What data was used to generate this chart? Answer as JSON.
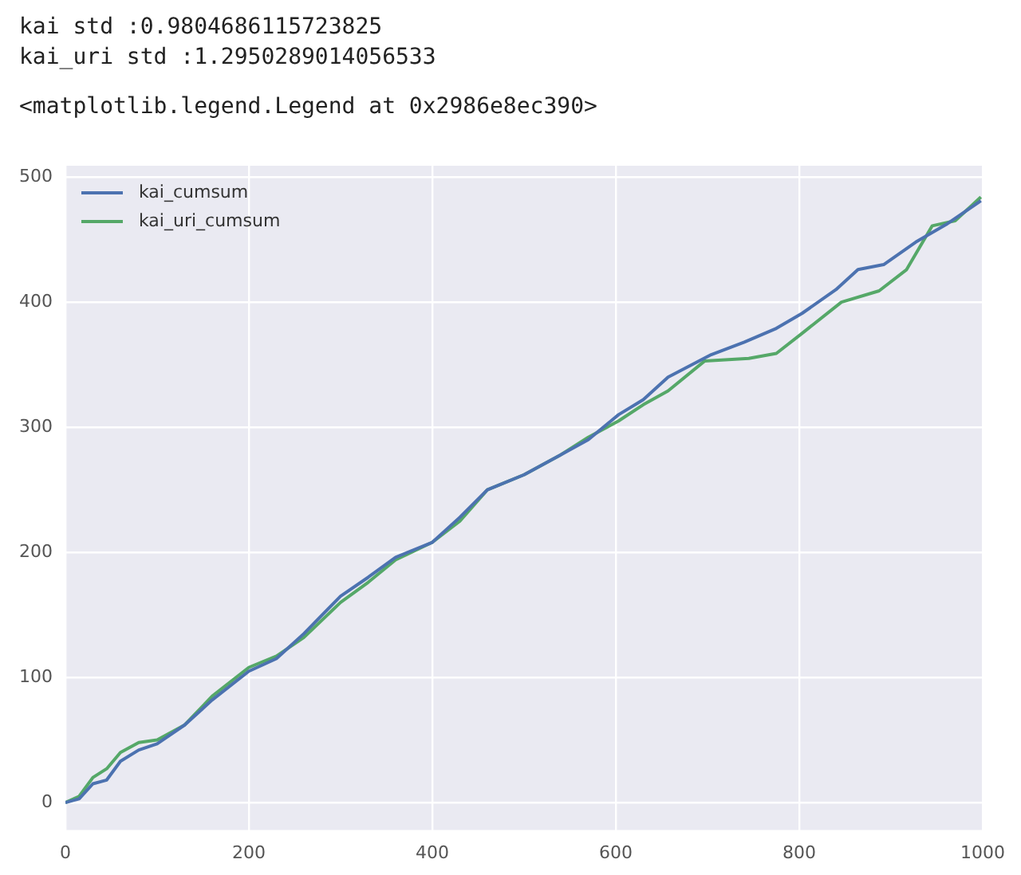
{
  "chart_data": {
    "type": "line",
    "annotations": [
      "kai std :0.9804686115723825",
      "kai_uri std :1.2950289014056533",
      "<matplotlib.legend.Legend at 0x2986e8ec390>"
    ],
    "series": [
      {
        "name": "kai_cumsum",
        "color": "#4c72b0",
        "x": [
          0,
          15,
          30,
          45,
          60,
          80,
          100,
          130,
          160,
          200,
          230,
          260,
          300,
          330,
          360,
          400,
          430,
          460,
          500,
          540,
          570,
          603,
          630,
          657,
          704,
          740,
          775,
          803,
          840,
          864,
          892,
          927,
          960,
          998
        ],
        "values": [
          0,
          3,
          15,
          18,
          33,
          42,
          47,
          62,
          82,
          105,
          115,
          135,
          165,
          180,
          196,
          208,
          228,
          250,
          262,
          278,
          290,
          310,
          322,
          340,
          358,
          368,
          379,
          391,
          410,
          426,
          430,
          448,
          462,
          481
        ]
      },
      {
        "name": "kai_uri_cumsum",
        "color": "#55a868",
        "x": [
          0,
          15,
          30,
          45,
          60,
          80,
          100,
          130,
          160,
          200,
          230,
          260,
          300,
          330,
          360,
          400,
          430,
          460,
          500,
          540,
          570,
          603,
          630,
          657,
          697,
          745,
          775,
          803,
          846,
          887,
          917,
          945,
          970,
          998
        ],
        "values": [
          0,
          5,
          20,
          27,
          40,
          48,
          50,
          62,
          85,
          108,
          117,
          132,
          160,
          176,
          194,
          208,
          225,
          250,
          262,
          278,
          292,
          305,
          318,
          329,
          353,
          355,
          359,
          375,
          400,
          409,
          426,
          461,
          465,
          484
        ]
      }
    ],
    "xlim": [
      0,
      1000
    ],
    "xticks": [
      0,
      200,
      400,
      600,
      800,
      1000
    ],
    "ylim": [
      -22,
      509
    ],
    "yticks": [
      0,
      100,
      200,
      300,
      400,
      500
    ],
    "grid": true,
    "legend": "top left",
    "marker": "none",
    "line_style": "solid"
  }
}
